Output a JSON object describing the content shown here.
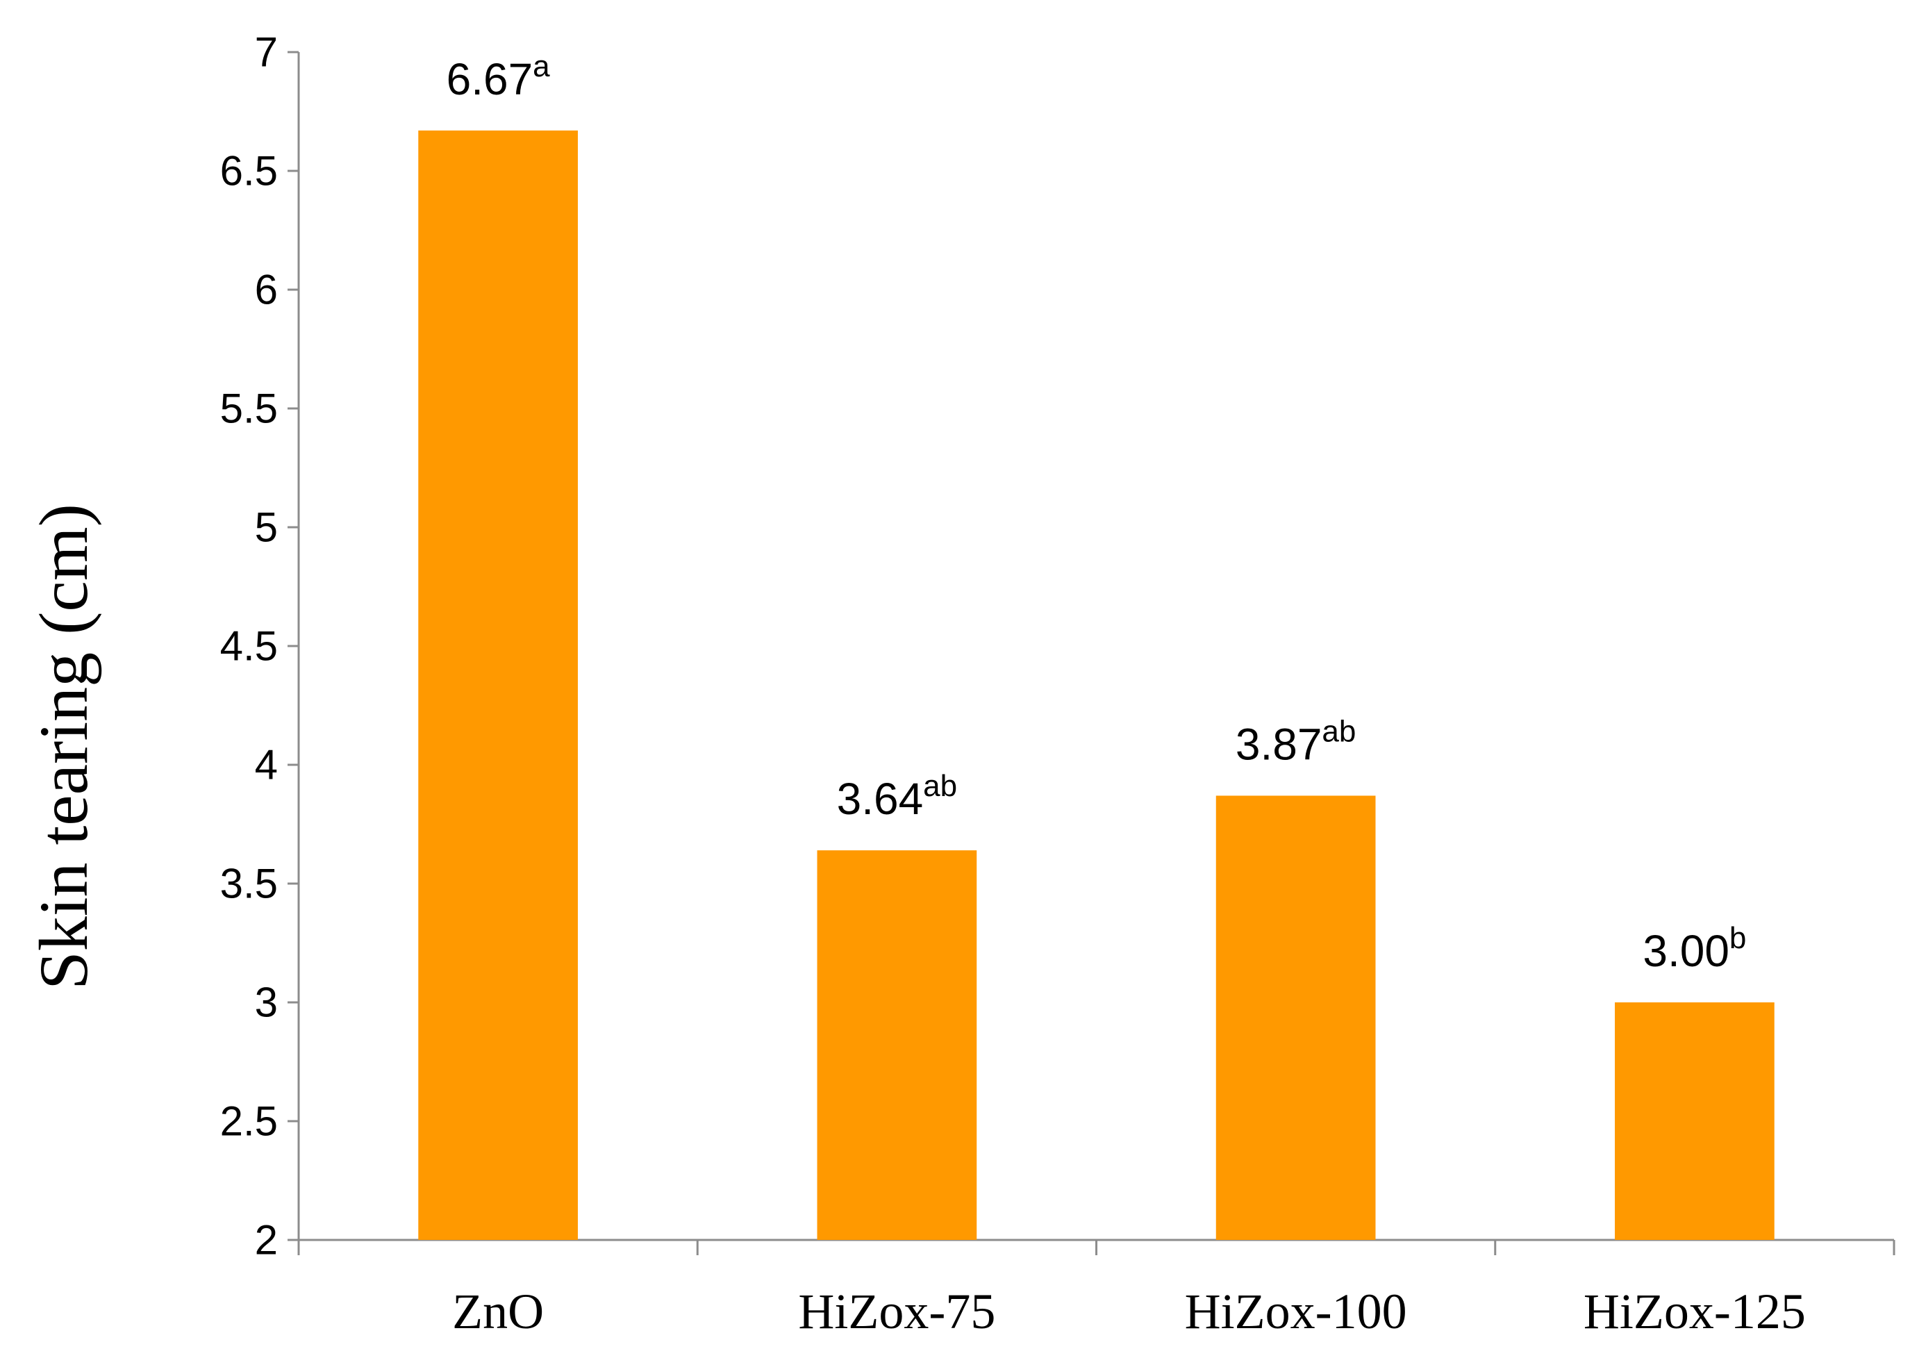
{
  "chart_data": {
    "type": "bar",
    "categories": [
      "ZnO",
      "HiZox-75",
      "HiZox-100",
      "HiZox-125"
    ],
    "values": [
      6.67,
      3.64,
      3.87,
      3.0
    ],
    "data_labels": [
      {
        "value": "6.67",
        "superscript": "a"
      },
      {
        "value": "3.64",
        "superscript": "ab"
      },
      {
        "value": "3.87",
        "superscript": "ab"
      },
      {
        "value": "3.00",
        "superscript": "b"
      }
    ],
    "ylabel": "Skin tearing (cm)",
    "ylim": [
      2,
      7
    ],
    "yticks": [
      "2",
      "2.5",
      "3",
      "3.5",
      "4",
      "4.5",
      "5",
      "5.5",
      "6",
      "6.5",
      "7"
    ],
    "grid": false,
    "bar_color": "#FF9900",
    "axis_color": "#8C8C8C"
  }
}
